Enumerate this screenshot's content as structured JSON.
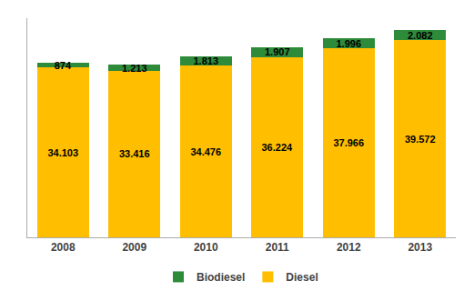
{
  "chart_data": {
    "type": "bar",
    "stacked": true,
    "categories": [
      "2008",
      "2009",
      "2010",
      "2011",
      "2012",
      "2013"
    ],
    "series": [
      {
        "name": "Diesel",
        "color": "#FFBF00",
        "values": [
          34.103,
          33.416,
          34.476,
          36.224,
          37.966,
          39.572
        ],
        "value_labels": [
          "34.103",
          "33.416",
          "34.476",
          "36.224",
          "37.966",
          "39.572"
        ]
      },
      {
        "name": "Biodiesel",
        "color": "#2E8B3A",
        "values": [
          0.874,
          1.213,
          1.813,
          1.907,
          1.996,
          2.082
        ],
        "value_labels": [
          "874",
          "1.213",
          "1.813",
          "1.907",
          "1.996",
          "2.082"
        ]
      }
    ],
    "ylim": [
      0,
      44
    ],
    "grid": false,
    "legend": "bottom",
    "data_labels": true,
    "tick_labels": "x"
  }
}
